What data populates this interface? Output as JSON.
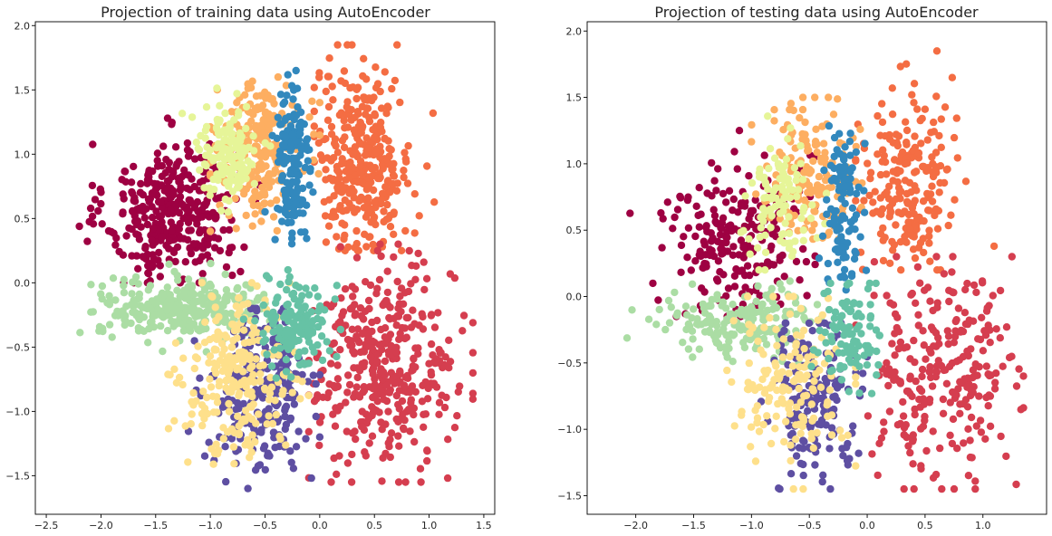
{
  "figure": {
    "background": "#ffffff"
  },
  "chart_data": [
    {
      "type": "scatter",
      "title": "Projection of training data using AutoEncoder",
      "xlabel": "",
      "ylabel": "",
      "xlim": [
        -2.6,
        1.6
      ],
      "ylim": [
        -1.8,
        2.03
      ],
      "xticks": [
        "-2.5",
        "-2.0",
        "-1.5",
        "-1.0",
        "-0.5",
        "0.0",
        "0.5",
        "1.0",
        "1.5"
      ],
      "xtick_values": [
        -2.5,
        -2.0,
        -1.5,
        -1.0,
        -0.5,
        0.0,
        0.5,
        1.0,
        1.5
      ],
      "yticks": [
        "-1.5",
        "-1.0",
        "-0.5",
        "0.0",
        "0.5",
        "1.0",
        "1.5",
        "2.0"
      ],
      "ytick_values": [
        -1.5,
        -1.0,
        -0.5,
        0.0,
        0.5,
        1.0,
        1.5,
        2.0
      ],
      "grid": false,
      "legend": "none",
      "colormap": "Spectral",
      "clusters": [
        {
          "color": "#9e0142",
          "center": [
            -1.35,
            0.55
          ],
          "spread": [
            0.3,
            0.27
          ],
          "extent": [
            [
              -2.25,
              0.0
            ],
            [
              -0.55,
              1.3
            ]
          ],
          "points": 360
        },
        {
          "color": "#f46d43",
          "center": [
            0.4,
            0.95
          ],
          "spread": [
            0.22,
            0.36
          ],
          "extent": [
            [
              -0.05,
              0.25
            ],
            [
              1.15,
              1.85
            ]
          ],
          "points": 340
        },
        {
          "color": "#d53e4f",
          "center": [
            0.6,
            -0.65
          ],
          "spread": [
            0.32,
            0.38
          ],
          "extent": [
            [
              -0.1,
              -1.55
            ],
            [
              1.4,
              0.3
            ]
          ],
          "points": 400
        },
        {
          "color": "#abdda4",
          "center": [
            -1.25,
            -0.2
          ],
          "spread": [
            0.38,
            0.11
          ],
          "extent": [
            [
              -2.4,
              -0.65
            ],
            [
              -0.3,
              0.15
            ]
          ],
          "points": 300
        },
        {
          "color": "#fdae61",
          "center": [
            -0.55,
            1.05
          ],
          "spread": [
            0.2,
            0.25
          ],
          "extent": [
            [
              -1.0,
              0.4
            ],
            [
              0.0,
              1.6
            ]
          ],
          "points": 220
        },
        {
          "color": "#e6f598",
          "center": [
            -0.85,
            1.0
          ],
          "spread": [
            0.15,
            0.2
          ],
          "extent": [
            [
              -1.3,
              0.35
            ],
            [
              -0.3,
              1.55
            ]
          ],
          "points": 140
        },
        {
          "color": "#3288bd",
          "center": [
            -0.25,
            0.9
          ],
          "spread": [
            0.08,
            0.35
          ],
          "extent": [
            [
              -0.5,
              0.0
            ],
            [
              0.0,
              1.65
            ]
          ],
          "points": 160
        },
        {
          "color": "#5e4fa2",
          "center": [
            -0.55,
            -0.85
          ],
          "spread": [
            0.22,
            0.3
          ],
          "extent": [
            [
              -1.2,
              -1.6
            ],
            [
              0.0,
              -0.2
            ]
          ],
          "points": 260
        },
        {
          "color": "#fee08b",
          "center": [
            -0.75,
            -0.75
          ],
          "spread": [
            0.25,
            0.3
          ],
          "extent": [
            [
              -1.4,
              -1.55
            ],
            [
              -0.1,
              0.0
            ]
          ],
          "points": 240
        },
        {
          "color": "#66c2a5",
          "center": [
            -0.2,
            -0.3
          ],
          "spread": [
            0.15,
            0.18
          ],
          "extent": [
            [
              -0.75,
              -0.85
            ],
            [
              0.3,
              0.1
            ]
          ],
          "points": 150
        }
      ]
    },
    {
      "type": "scatter",
      "title": "Projection of testing data using AutoEncoder",
      "xlabel": "",
      "ylabel": "",
      "xlim": [
        -2.42,
        1.55
      ],
      "ylim": [
        -1.64,
        2.07
      ],
      "xticks": [
        "-2.0",
        "-1.5",
        "-1.0",
        "-0.5",
        "0.0",
        "0.5",
        "1.0"
      ],
      "xtick_values": [
        -2.0,
        -1.5,
        -1.0,
        -0.5,
        0.0,
        0.5,
        1.0
      ],
      "yticks": [
        "-1.5",
        "-1.0",
        "-0.5",
        "0.0",
        "0.5",
        "1.0",
        "1.5",
        "2.0"
      ],
      "ytick_values": [
        -1.5,
        -1.0,
        -0.5,
        0.0,
        0.5,
        1.0,
        1.5,
        2.0
      ],
      "grid": false,
      "legend": "none",
      "colormap": "Spectral",
      "clusters": [
        {
          "color": "#9e0142",
          "center": [
            -1.15,
            0.45
          ],
          "spread": [
            0.3,
            0.3
          ],
          "extent": [
            [
              -2.05,
              -0.15
            ],
            [
              -0.45,
              1.25
            ]
          ],
          "points": 230
        },
        {
          "color": "#f46d43",
          "center": [
            0.35,
            0.85
          ],
          "spread": [
            0.2,
            0.35
          ],
          "extent": [
            [
              -0.1,
              0.2
            ],
            [
              1.15,
              1.85
            ]
          ],
          "points": 210
        },
        {
          "color": "#d53e4f",
          "center": [
            0.65,
            -0.55
          ],
          "spread": [
            0.3,
            0.4
          ],
          "extent": [
            [
              -0.15,
              -1.45
            ],
            [
              1.35,
              0.3
            ]
          ],
          "points": 260
        },
        {
          "color": "#abdda4",
          "center": [
            -1.05,
            -0.2
          ],
          "spread": [
            0.35,
            0.12
          ],
          "extent": [
            [
              -2.25,
              -0.6
            ],
            [
              -0.4,
              0.15
            ]
          ],
          "points": 200
        },
        {
          "color": "#fdae61",
          "center": [
            -0.5,
            0.95
          ],
          "spread": [
            0.2,
            0.25
          ],
          "extent": [
            [
              -1.0,
              0.25
            ],
            [
              0.0,
              1.5
            ]
          ],
          "points": 150
        },
        {
          "color": "#e6f598",
          "center": [
            -0.75,
            0.75
          ],
          "spread": [
            0.15,
            0.22
          ],
          "extent": [
            [
              -1.15,
              0.2
            ],
            [
              -0.3,
              1.4
            ]
          ],
          "points": 100
        },
        {
          "color": "#3288bd",
          "center": [
            -0.2,
            0.65
          ],
          "spread": [
            0.08,
            0.3
          ],
          "extent": [
            [
              -0.45,
              0.05
            ],
            [
              0.0,
              1.5
            ]
          ],
          "points": 110
        },
        {
          "color": "#5e4fa2",
          "center": [
            -0.45,
            -0.75
          ],
          "spread": [
            0.2,
            0.28
          ],
          "extent": [
            [
              -1.05,
              -1.45
            ],
            [
              0.0,
              -0.2
            ]
          ],
          "points": 170
        },
        {
          "color": "#fee08b",
          "center": [
            -0.65,
            -0.65
          ],
          "spread": [
            0.25,
            0.3
          ],
          "extent": [
            [
              -1.3,
              -1.45
            ],
            [
              -0.1,
              0.0
            ]
          ],
          "points": 160
        },
        {
          "color": "#66c2a5",
          "center": [
            -0.15,
            -0.3
          ],
          "spread": [
            0.15,
            0.18
          ],
          "extent": [
            [
              -0.7,
              -0.85
            ],
            [
              0.3,
              0.1
            ]
          ],
          "points": 100
        }
      ]
    }
  ]
}
